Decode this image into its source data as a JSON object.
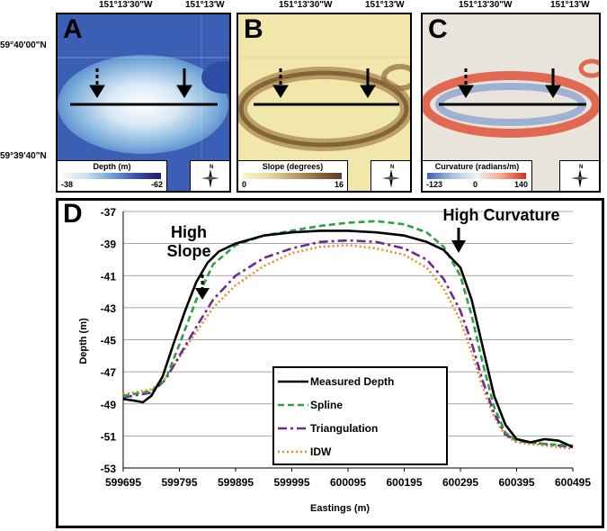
{
  "map": {
    "coords_top": [
      "151°13'30\"W",
      "151°13'W"
    ],
    "coords_left": [
      "59°40'00\"N",
      "59°39'40\"N"
    ],
    "compass_letter": "N",
    "panels": [
      {
        "id": "A",
        "legend_title": "Depth (m)",
        "min": "-38",
        "mid": "",
        "max": "-62",
        "colors": [
          "#f4f8fb",
          "#c9def0",
          "#6fa3d6",
          "#3c4fa8",
          "#221a6e"
        ]
      },
      {
        "id": "B",
        "legend_title": "Slope (degrees)",
        "min": "0",
        "mid": "",
        "max": "16",
        "colors": [
          "#fbf4c6",
          "#e8dca0",
          "#c2a36a",
          "#8e6a3e",
          "#5a3f1f"
        ]
      },
      {
        "id": "C",
        "legend_title": "Curvature (radians/m)",
        "min": "-123",
        "mid": "0",
        "max": "140",
        "colors": [
          "#3f62b6",
          "#a8bfe2",
          "#f3f3f3",
          "#f2a88a",
          "#d3321f"
        ]
      }
    ]
  },
  "chart_label": "D",
  "annotations": {
    "slope_line1": "High",
    "slope_line2": "Slope",
    "curv": "High Curvature"
  },
  "chart_data": {
    "type": "line",
    "xlabel": "Eastings (m)",
    "ylabel": "Depth (m)",
    "xlim": [
      599695,
      600495
    ],
    "ylim": [
      -53,
      -37
    ],
    "xticks": [
      599695,
      599795,
      599895,
      599995,
      600095,
      600195,
      600295,
      600395,
      600495
    ],
    "yticks": [
      -37,
      -39,
      -41,
      -43,
      -45,
      -47,
      -49,
      -51,
      -53
    ],
    "grid": true,
    "legend_position": "center-bottom",
    "series": [
      {
        "name": "Measured Depth",
        "color": "#000000",
        "dash": "none",
        "width": 2.6,
        "points": [
          [
            599695,
            -48.7
          ],
          [
            599715,
            -48.8
          ],
          [
            599730,
            -48.9
          ],
          [
            599745,
            -48.5
          ],
          [
            599765,
            -47.3
          ],
          [
            599785,
            -45.2
          ],
          [
            599805,
            -43.2
          ],
          [
            599825,
            -41.4
          ],
          [
            599845,
            -40.2
          ],
          [
            599865,
            -39.5
          ],
          [
            599895,
            -39.0
          ],
          [
            599945,
            -38.5
          ],
          [
            599995,
            -38.3
          ],
          [
            600045,
            -38.2
          ],
          [
            600095,
            -38.2
          ],
          [
            600145,
            -38.3
          ],
          [
            600195,
            -38.5
          ],
          [
            600235,
            -38.9
          ],
          [
            600265,
            -39.4
          ],
          [
            600295,
            -40.5
          ],
          [
            600315,
            -42.5
          ],
          [
            600335,
            -45.5
          ],
          [
            600355,
            -48.5
          ],
          [
            600375,
            -50.3
          ],
          [
            600395,
            -51.2
          ],
          [
            600420,
            -51.4
          ],
          [
            600445,
            -51.2
          ],
          [
            600470,
            -51.3
          ],
          [
            600495,
            -51.7
          ]
        ]
      },
      {
        "name": "Spline",
        "color": "#2ea043",
        "dash": "7,4",
        "width": 2.6,
        "points": [
          [
            599695,
            -48.5
          ],
          [
            599745,
            -48.2
          ],
          [
            599770,
            -47.5
          ],
          [
            599795,
            -45.3
          ],
          [
            599825,
            -42.5
          ],
          [
            599855,
            -40.3
          ],
          [
            599895,
            -39.1
          ],
          [
            599945,
            -38.5
          ],
          [
            599995,
            -38.2
          ],
          [
            600045,
            -37.9
          ],
          [
            600095,
            -37.7
          ],
          [
            600145,
            -37.6
          ],
          [
            600195,
            -37.8
          ],
          [
            600235,
            -38.3
          ],
          [
            600265,
            -39.2
          ],
          [
            600295,
            -41.0
          ],
          [
            600315,
            -43.5
          ],
          [
            600335,
            -46.5
          ],
          [
            600355,
            -49.2
          ],
          [
            600375,
            -50.8
          ],
          [
            600395,
            -51.3
          ],
          [
            600445,
            -51.5
          ],
          [
            600495,
            -51.6
          ]
        ]
      },
      {
        "name": "Triangulation",
        "color": "#6b2c91",
        "dash": "10,4,3,4",
        "width": 2.6,
        "points": [
          [
            599695,
            -48.6
          ],
          [
            599745,
            -48.3
          ],
          [
            599770,
            -47.5
          ],
          [
            599795,
            -46.0
          ],
          [
            599825,
            -44.2
          ],
          [
            599855,
            -42.5
          ],
          [
            599895,
            -41.0
          ],
          [
            599945,
            -39.9
          ],
          [
            599995,
            -39.3
          ],
          [
            600045,
            -38.9
          ],
          [
            600095,
            -38.8
          ],
          [
            600145,
            -38.9
          ],
          [
            600195,
            -39.3
          ],
          [
            600235,
            -40.0
          ],
          [
            600265,
            -41.2
          ],
          [
            600295,
            -43.2
          ],
          [
            600315,
            -45.2
          ],
          [
            600335,
            -47.6
          ],
          [
            600355,
            -49.6
          ],
          [
            600375,
            -50.9
          ],
          [
            600395,
            -51.3
          ],
          [
            600445,
            -51.5
          ],
          [
            600495,
            -51.7
          ]
        ]
      },
      {
        "name": "IDW",
        "color": "#f08a24",
        "dash": "2,3",
        "width": 2.6,
        "points": [
          [
            599695,
            -48.4
          ],
          [
            599745,
            -48.1
          ],
          [
            599770,
            -47.4
          ],
          [
            599795,
            -46.1
          ],
          [
            599825,
            -44.5
          ],
          [
            599855,
            -43.0
          ],
          [
            599895,
            -41.6
          ],
          [
            599945,
            -40.4
          ],
          [
            599995,
            -39.6
          ],
          [
            600045,
            -39.2
          ],
          [
            600095,
            -39.1
          ],
          [
            600145,
            -39.3
          ],
          [
            600195,
            -39.7
          ],
          [
            600235,
            -40.5
          ],
          [
            600265,
            -41.8
          ],
          [
            600295,
            -43.8
          ],
          [
            600315,
            -45.8
          ],
          [
            600335,
            -48.0
          ],
          [
            600355,
            -49.8
          ],
          [
            600375,
            -51.0
          ],
          [
            600395,
            -51.4
          ],
          [
            600445,
            -51.6
          ],
          [
            600495,
            -51.8
          ]
        ]
      }
    ]
  }
}
